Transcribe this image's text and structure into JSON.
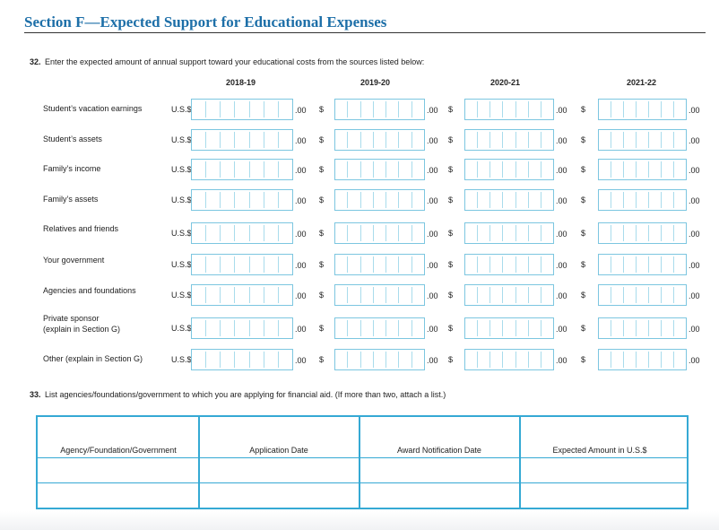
{
  "header": {
    "title": "Section F—Expected Support for Educational Expenses"
  },
  "question_32": {
    "number": "32.",
    "text": "Enter the expected amount of annual support toward your educational costs from the sources listed below:",
    "years": [
      "2018-19",
      "2019-20",
      "2020-21",
      "2021-22"
    ],
    "first_currency": "U.S.$",
    "currency": "$",
    "cents": ".00",
    "rows": [
      [
        "Student’s vacation earnings"
      ],
      [
        "Student’s assets"
      ],
      [
        "Family’s income"
      ],
      [
        "Family’s assets"
      ],
      [
        "Relatives and friends"
      ],
      [
        "Your government"
      ],
      [
        "Agencies and foundations"
      ],
      [
        "Private sponsor",
        "(explain in Section G)"
      ],
      [
        "Other (explain in Section G)"
      ]
    ]
  },
  "question_33": {
    "number": "33.",
    "text": "List agencies/foundations/government to which you are applying for financial aid. (If more than two, attach a list.)",
    "columns": [
      "Agency/Foundation/Government",
      "Application Date",
      "Award Notification Date",
      "Expected Amount in U.S.$"
    ]
  }
}
